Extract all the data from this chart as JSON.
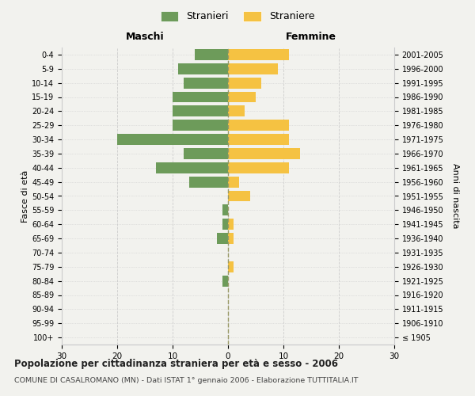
{
  "age_groups": [
    "100+",
    "95-99",
    "90-94",
    "85-89",
    "80-84",
    "75-79",
    "70-74",
    "65-69",
    "60-64",
    "55-59",
    "50-54",
    "45-49",
    "40-44",
    "35-39",
    "30-34",
    "25-29",
    "20-24",
    "15-19",
    "10-14",
    "5-9",
    "0-4"
  ],
  "birth_years": [
    "≤ 1905",
    "1906-1910",
    "1911-1915",
    "1916-1920",
    "1921-1925",
    "1926-1930",
    "1931-1935",
    "1936-1940",
    "1941-1945",
    "1946-1950",
    "1951-1955",
    "1956-1960",
    "1961-1965",
    "1966-1970",
    "1971-1975",
    "1976-1980",
    "1981-1985",
    "1986-1990",
    "1991-1995",
    "1996-2000",
    "2001-2005"
  ],
  "males": [
    0,
    0,
    0,
    0,
    1,
    0,
    0,
    2,
    1,
    1,
    0,
    7,
    13,
    8,
    20,
    10,
    10,
    10,
    8,
    9,
    6
  ],
  "females": [
    0,
    0,
    0,
    0,
    0,
    1,
    0,
    1,
    1,
    0,
    4,
    2,
    11,
    13,
    11,
    11,
    3,
    5,
    6,
    9,
    11
  ],
  "male_color": "#6d9b5a",
  "female_color": "#f5c242",
  "background_color": "#f2f2ee",
  "grid_color": "#cccccc",
  "title": "Popolazione per cittadinanza straniera per età e sesso - 2006",
  "subtitle": "COMUNE DI CASALROMANO (MN) - Dati ISTAT 1° gennaio 2006 - Elaborazione TUTTITALIA.IT",
  "xlabel_left": "Maschi",
  "xlabel_right": "Femmine",
  "ylabel_left": "Fasce di età",
  "ylabel_right": "Anni di nascita",
  "legend_male": "Stranieri",
  "legend_female": "Straniere",
  "xlim": 30
}
